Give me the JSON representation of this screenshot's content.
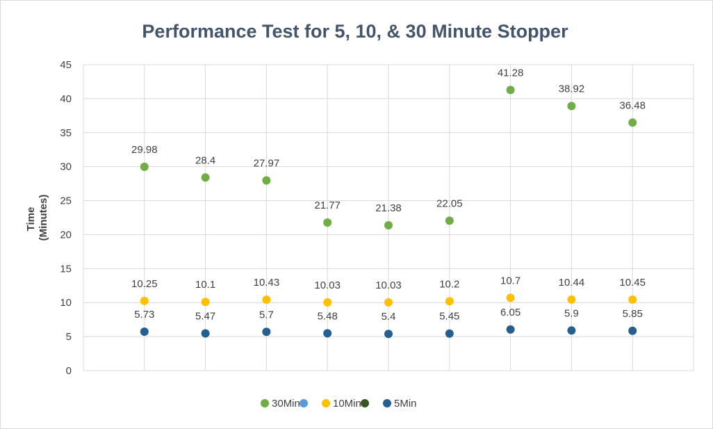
{
  "chart_data": {
    "type": "scatter",
    "title": "Performance Test for 5, 10, & 30 Minute Stopper",
    "xlabel": "",
    "ylabel_lines": [
      "Time",
      "(Minutes)"
    ],
    "ylim": [
      0,
      45
    ],
    "yticks": [
      0,
      5,
      10,
      15,
      20,
      25,
      30,
      35,
      40,
      45
    ],
    "x": [
      1,
      2,
      3,
      4,
      5,
      6,
      7,
      8,
      9
    ],
    "xlim": [
      0,
      10
    ],
    "grid": true,
    "legend_position": "bottom",
    "series": [
      {
        "name": "30Min",
        "color": "#70ad47",
        "show_labels": true,
        "values": [
          29.98,
          28.4,
          27.97,
          21.77,
          21.38,
          22.05,
          41.28,
          38.92,
          36.48
        ],
        "labels": [
          "29.98",
          "28.4",
          "27.97",
          "21.77",
          "21.38",
          "22.05",
          "41.28",
          "38.92",
          "36.48"
        ]
      },
      {
        "name": "",
        "color": "#5b9bd5",
        "show_labels": false,
        "values": [],
        "labels": []
      },
      {
        "name": "10Min",
        "color": "#ffc000",
        "show_labels": true,
        "values": [
          10.25,
          10.1,
          10.43,
          10.03,
          10.03,
          10.2,
          10.7,
          10.44,
          10.45
        ],
        "labels": [
          "10.25",
          "10.1",
          "10.43",
          "10.03",
          "10.03",
          "10.2",
          "10.7",
          "10.44",
          "10.45"
        ]
      },
      {
        "name": "",
        "color": "#375623",
        "show_labels": false,
        "values": [],
        "labels": []
      },
      {
        "name": "5Min",
        "color": "#255e91",
        "show_labels": true,
        "values": [
          5.73,
          5.47,
          5.7,
          5.48,
          5.4,
          5.45,
          6.05,
          5.9,
          5.85
        ],
        "labels": [
          "5.73",
          "5.47",
          "5.7",
          "5.48",
          "5.4",
          "5.45",
          "6.05",
          "5.9",
          "5.85"
        ]
      }
    ]
  }
}
